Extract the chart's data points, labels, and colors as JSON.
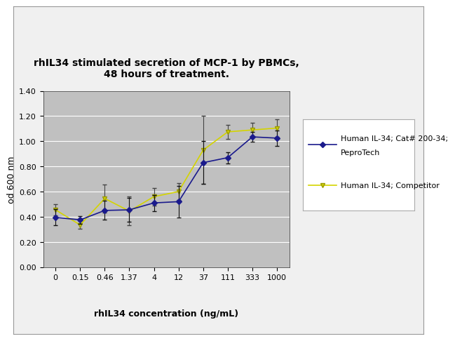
{
  "title": "rhIL34 stimulated secretion of MCP-1 by PBMCs,\n48 hours of treatment.",
  "xlabel": "rhIL34 concentration (ng/mL)",
  "ylabel": "od 600 nm",
  "x_labels": [
    "0",
    "0.15",
    "0.46",
    "1.37",
    "4",
    "12",
    "37",
    "111",
    "333",
    "1000"
  ],
  "blue_y": [
    0.395,
    0.375,
    0.45,
    0.455,
    0.51,
    0.52,
    0.83,
    0.87,
    1.035,
    1.025
  ],
  "blue_yerr": [
    0.065,
    0.03,
    0.075,
    0.095,
    0.065,
    0.125,
    0.17,
    0.045,
    0.04,
    0.06
  ],
  "yellow_y": [
    0.455,
    0.335,
    0.545,
    0.445,
    0.56,
    0.6,
    0.93,
    1.075,
    1.09,
    1.105
  ],
  "yellow_yerr": [
    0.045,
    0.03,
    0.11,
    0.115,
    0.07,
    0.065,
    0.27,
    0.055,
    0.055,
    0.07
  ],
  "ylim": [
    0.0,
    1.4
  ],
  "yticks": [
    0.0,
    0.2,
    0.4,
    0.6,
    0.8,
    1.0,
    1.2,
    1.4
  ],
  "blue_color": "#1a1a8c",
  "yellow_color": "#d4d400",
  "legend_blue_line1": "Human IL-34; Cat# 200-34;",
  "legend_blue_line2": "PeproTech",
  "legend_yellow": "Human IL-34; Competitor",
  "plot_bg_color": "#c0c0c0",
  "outer_box_bg": "#f0f0f0",
  "figure_bg": "#ffffff",
  "title_fontsize": 10,
  "label_fontsize": 9,
  "tick_fontsize": 8,
  "legend_fontsize": 8
}
